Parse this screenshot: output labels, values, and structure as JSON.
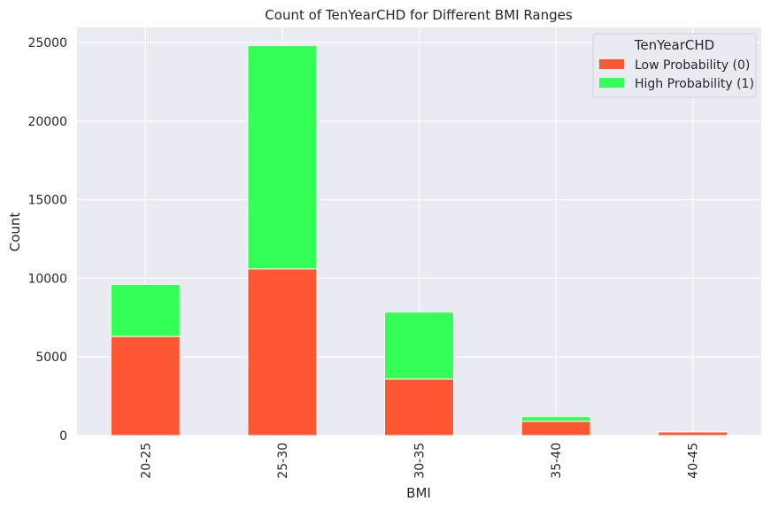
{
  "chart_data": {
    "type": "bar",
    "stacked": true,
    "title": "Count of TenYearCHD for Different BMI Ranges",
    "xlabel": "BMI",
    "ylabel": "Count",
    "categories": [
      "20-25",
      "25-30",
      "30-35",
      "35-40",
      "40-45"
    ],
    "yticks": [
      0,
      5000,
      10000,
      15000,
      20000,
      25000
    ],
    "ylim": [
      0,
      26000
    ],
    "grid": true,
    "legend": {
      "title": "TenYearCHD",
      "position": "top-right"
    },
    "series": [
      {
        "name": "Low Probability (0)",
        "color": "#ff5733",
        "values": [
          6300,
          10600,
          3600,
          900,
          230
        ]
      },
      {
        "name": "High Probability (1)",
        "color": "#33ff57",
        "values": [
          3300,
          14200,
          4250,
          300,
          20
        ]
      }
    ]
  }
}
